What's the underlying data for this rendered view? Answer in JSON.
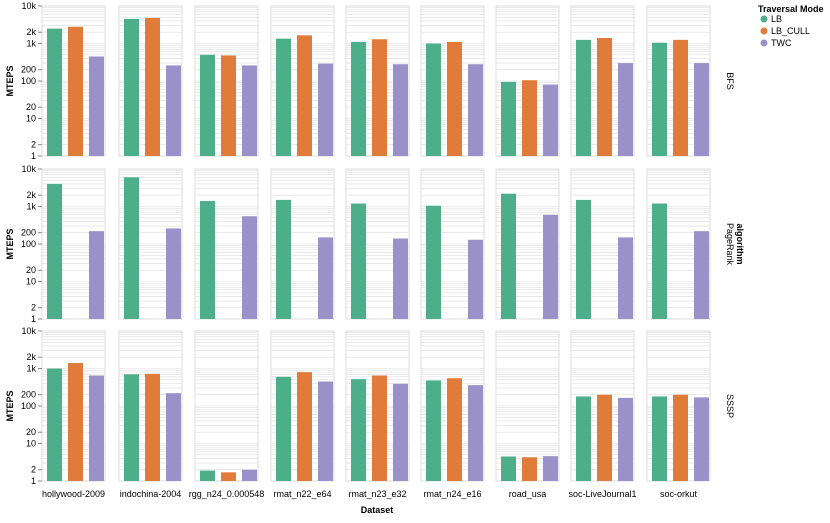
{
  "chart_data": {
    "type": "bar",
    "subtype": "faceted-grouped-bar",
    "xlabel": "Dataset",
    "ylabel": "MTEPS",
    "row_title": "algorithm",
    "y_scale": "log",
    "ylim": [
      1,
      10000
    ],
    "y_ticks": [
      "1",
      "2",
      "10",
      "20",
      "100",
      "200",
      "1k",
      "2k",
      "10k"
    ],
    "grid": true,
    "legend": {
      "title": "Traversal Mode",
      "position": "top-right",
      "entries": [
        {
          "name": "LB",
          "color": "#4daf8a"
        },
        {
          "name": "LB_CULL",
          "color": "#e07b39"
        },
        {
          "name": "TWC",
          "color": "#9a91c9"
        }
      ]
    },
    "categories": [
      "hollywood-2009",
      "indochina-2004",
      "rgg_n24_0.000548",
      "rmat_n22_e64",
      "rmat_n23_e32",
      "rmat_n24_e16",
      "road_usa",
      "soc-LiveJournal1",
      "soc-orkut"
    ],
    "rows": [
      "BFS",
      "PageRank",
      "SSSP"
    ],
    "facets": [
      {
        "row": "BFS",
        "series": [
          {
            "name": "LB",
            "values": [
              2500,
              4500,
              500,
              1350,
              1100,
              1000,
              95,
              1250,
              1050
            ]
          },
          {
            "name": "LB_CULL",
            "values": [
              2800,
              4800,
              480,
              1650,
              1300,
              1100,
              105,
              1400,
              1250
            ]
          },
          {
            "name": "TWC",
            "values": [
              450,
              260,
              260,
              290,
              280,
              280,
              80,
              300,
              300
            ]
          }
        ]
      },
      {
        "row": "PageRank",
        "series": [
          {
            "name": "LB",
            "values": [
              4000,
              6000,
              1400,
              1500,
              1200,
              1050,
              2200,
              1500,
              1200
            ]
          },
          {
            "name": "LB_CULL",
            "values": [
              null,
              null,
              null,
              null,
              null,
              null,
              null,
              null,
              null
            ]
          },
          {
            "name": "TWC",
            "values": [
              220,
              260,
              550,
              150,
              140,
              130,
              600,
              150,
              220
            ]
          }
        ]
      },
      {
        "row": "SSSP",
        "series": [
          {
            "name": "LB",
            "values": [
              1000,
              700,
              1.9,
              600,
              520,
              480,
              4.5,
              180,
              180
            ]
          },
          {
            "name": "LB_CULL",
            "values": [
              1400,
              720,
              1.7,
              800,
              650,
              550,
              4.3,
              200,
              200
            ]
          },
          {
            "name": "TWC",
            "values": [
              650,
              220,
              2.0,
              450,
              390,
              360,
              4.6,
              165,
              170
            ]
          }
        ]
      }
    ]
  }
}
